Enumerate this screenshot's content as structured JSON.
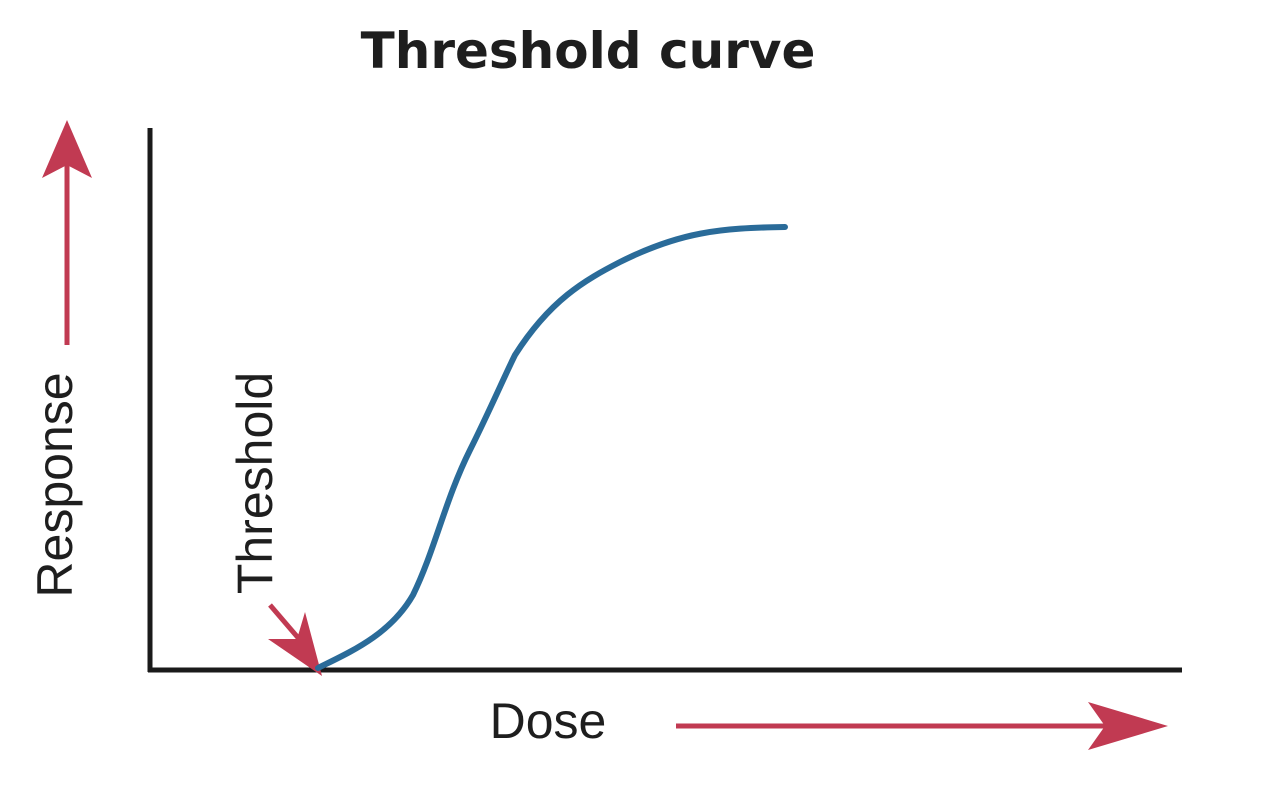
{
  "title": "Threshold curve",
  "y_axis_label": "Response",
  "x_axis_label": "Dose",
  "annotation": "Threshold",
  "colors": {
    "curve": "#2a6b99",
    "arrow": "#c13a52",
    "axis": "#1a1a1a",
    "text": "#1e1e1e"
  },
  "icons": [
    "response-direction-arrow-icon",
    "dose-direction-arrow-icon",
    "threshold-pointer-arrow-icon"
  ]
}
